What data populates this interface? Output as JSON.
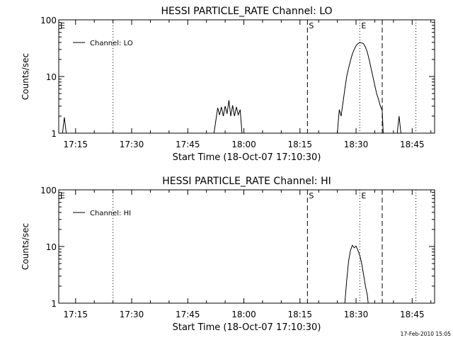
{
  "footer": {
    "timestamp": "17-Feb-2010 15:05"
  },
  "chart_data": [
    {
      "type": "line",
      "title": "HESSI PARTICLE_RATE Channel: LO",
      "xlabel": "Start Time (18-Oct-07 17:10:30)",
      "ylabel": "Counts/sec",
      "y_scale": "log",
      "ylim": [
        1,
        100
      ],
      "xlim": [
        "17:10:30",
        "18:51:00"
      ],
      "x_ticks": [
        "17:15",
        "17:30",
        "17:45",
        "18:00",
        "18:15",
        "18:30",
        "18:45"
      ],
      "y_ticks": [
        "1",
        "10",
        "100"
      ],
      "legend": {
        "position": "top-left",
        "entries": [
          "Channel: LO"
        ]
      },
      "markers": [
        {
          "label": "E",
          "x": "17:10:30",
          "style": "dotted"
        },
        {
          "label": "",
          "x": "17:25:00",
          "style": "dotted"
        },
        {
          "label": "S",
          "x": "18:17:00",
          "style": "dashed"
        },
        {
          "label": "E",
          "x": "18:31:00",
          "style": "dotted"
        },
        {
          "label": "",
          "x": "18:37:00",
          "style": "dashed"
        },
        {
          "label": "",
          "x": "18:46:00",
          "style": "dotted"
        }
      ],
      "series": [
        {
          "name": "Channel: LO",
          "segments": [
            {
              "x": [
                "17:11:30",
                "17:12:00",
                "17:12:30"
              ],
              "y": [
                1,
                1.9,
                1
              ]
            },
            {
              "x": [
                "17:52:00",
                "17:53:00",
                "17:53:30",
                "17:54:00",
                "17:54:30",
                "17:55:00",
                "17:55:30",
                "17:56:00",
                "17:56:30",
                "17:57:00",
                "17:57:30",
                "17:58:00",
                "17:58:30",
                "17:59:00",
                "17:59:30"
              ],
              "y": [
                1,
                2.8,
                2.1,
                2.9,
                2.0,
                3.0,
                2.2,
                3.8,
                2.0,
                3.1,
                2.0,
                2.9,
                2.1,
                2.6,
                1
              ]
            },
            {
              "x": [
                "18:25:00",
                "18:25:30",
                "18:26:00",
                "18:26:30",
                "18:27:00",
                "18:27:30",
                "18:28:00",
                "18:28:30",
                "18:29:00",
                "18:29:30",
                "18:30:00",
                "18:30:30",
                "18:31:00",
                "18:31:30",
                "18:32:00",
                "18:32:30",
                "18:33:00",
                "18:33:30",
                "18:34:00",
                "18:34:30",
                "18:35:00",
                "18:35:30",
                "18:36:00",
                "18:36:30",
                "18:37:00",
                "18:37:15"
              ],
              "y": [
                1,
                2.6,
                2.0,
                3.5,
                6.0,
                10,
                14,
                19,
                25,
                30,
                35,
                38,
                40,
                39,
                38,
                33,
                27,
                20,
                14,
                10,
                7,
                5,
                4.0,
                3.0,
                2.5,
                1
              ]
            },
            {
              "x": [
                "18:41:00",
                "18:41:30",
                "18:42:00"
              ],
              "y": [
                1,
                2.0,
                1
              ]
            }
          ]
        }
      ]
    },
    {
      "type": "line",
      "title": "HESSI PARTICLE_RATE Channel: HI",
      "xlabel": "Start Time (18-Oct-07 17:10:30)",
      "ylabel": "Counts/sec",
      "y_scale": "log",
      "ylim": [
        1,
        100
      ],
      "xlim": [
        "17:10:30",
        "18:51:00"
      ],
      "x_ticks": [
        "17:15",
        "17:30",
        "17:45",
        "18:00",
        "18:15",
        "18:30",
        "18:45"
      ],
      "y_ticks": [
        "1",
        "10",
        "100"
      ],
      "legend": {
        "position": "top-left",
        "entries": [
          "Channel: HI"
        ]
      },
      "markers": [
        {
          "label": "E",
          "x": "17:10:30",
          "style": "dotted"
        },
        {
          "label": "",
          "x": "17:25:00",
          "style": "dotted"
        },
        {
          "label": "S",
          "x": "18:17:00",
          "style": "dashed"
        },
        {
          "label": "E",
          "x": "18:31:00",
          "style": "dotted"
        },
        {
          "label": "",
          "x": "18:37:00",
          "style": "dashed"
        },
        {
          "label": "",
          "x": "18:46:00",
          "style": "dotted"
        }
      ],
      "series": [
        {
          "name": "Channel: HI",
          "segments": [
            {
              "x": [
                "18:27:00",
                "18:27:30",
                "18:28:00",
                "18:28:30",
                "18:29:00",
                "18:29:30",
                "18:30:00",
                "18:30:30",
                "18:31:00",
                "18:31:30",
                "18:32:00",
                "18:32:30",
                "18:33:00",
                "18:33:15"
              ],
              "y": [
                1,
                2.5,
                5.5,
                8.5,
                10.5,
                9.5,
                10.2,
                8.5,
                7.0,
                5.0,
                3.2,
                2.0,
                1.4,
                1
              ]
            }
          ]
        }
      ]
    }
  ]
}
